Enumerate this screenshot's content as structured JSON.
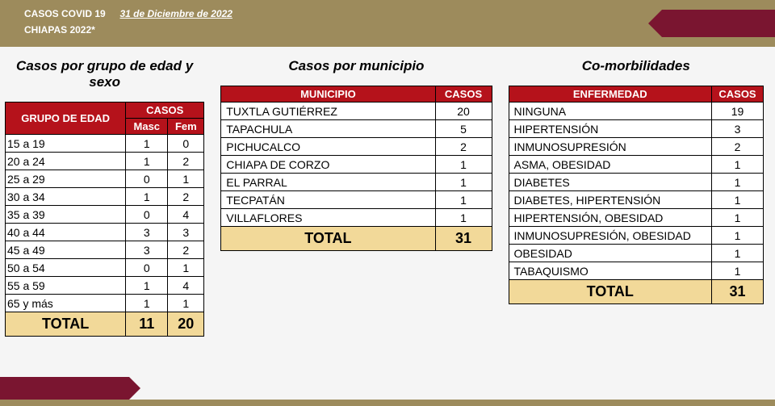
{
  "header": {
    "line1_prefix": "CASOS COVID 19",
    "date": "31 de Diciembre de 2022",
    "line2": "CHIAPAS 2022*"
  },
  "colors": {
    "gold": "#9d8b5c",
    "wine": "#7a1530",
    "header_red": "#b5121b",
    "total_bg": "#f2d999"
  },
  "age_sex": {
    "title": "Casos por grupo de edad y sexo",
    "col_group": "GRUPO DE EDAD",
    "col_cases": "CASOS",
    "sub_masc": "Masc",
    "sub_fem": "Fem",
    "rows": [
      {
        "g": "15 a 19",
        "m": 1,
        "f": 0
      },
      {
        "g": "20 a 24",
        "m": 1,
        "f": 2
      },
      {
        "g": "25 a 29",
        "m": 0,
        "f": 1
      },
      {
        "g": "30 a 34",
        "m": 1,
        "f": 2
      },
      {
        "g": "35 a 39",
        "m": 0,
        "f": 4
      },
      {
        "g": "40 a 44",
        "m": 3,
        "f": 3
      },
      {
        "g": "45 a 49",
        "m": 3,
        "f": 2
      },
      {
        "g": "50 a 54",
        "m": 0,
        "f": 1
      },
      {
        "g": "55 a 59",
        "m": 1,
        "f": 4
      },
      {
        "g": "65 y más",
        "m": 1,
        "f": 1
      }
    ],
    "total_label": "TOTAL",
    "total_m": 11,
    "total_f": 20
  },
  "muni": {
    "title": "Casos por municipio",
    "col_muni": "MUNICIPIO",
    "col_cases": "CASOS",
    "rows": [
      {
        "n": "TUXTLA GUTIÉRREZ",
        "c": 20
      },
      {
        "n": "TAPACHULA",
        "c": 5
      },
      {
        "n": "PICHUCALCO",
        "c": 2
      },
      {
        "n": "CHIAPA DE CORZO",
        "c": 1
      },
      {
        "n": "EL PARRAL",
        "c": 1
      },
      {
        "n": "TECPATÁN",
        "c": 1
      },
      {
        "n": "VILLAFLORES",
        "c": 1
      }
    ],
    "total_label": "TOTAL",
    "total": 31
  },
  "comorb": {
    "title": "Co-morbilidades",
    "col_enf": "ENFERMEDAD",
    "col_cases": "CASOS",
    "rows": [
      {
        "n": "NINGUNA",
        "c": 19
      },
      {
        "n": "HIPERTENSIÓN",
        "c": 3
      },
      {
        "n": "INMUNOSUPRESIÓN",
        "c": 2
      },
      {
        "n": "ASMA, OBESIDAD",
        "c": 1
      },
      {
        "n": "DIABETES",
        "c": 1
      },
      {
        "n": "DIABETES, HIPERTENSIÓN",
        "c": 1
      },
      {
        "n": "HIPERTENSIÓN, OBESIDAD",
        "c": 1
      },
      {
        "n": "INMUNOSUPRESIÓN, OBESIDAD",
        "c": 1
      },
      {
        "n": "OBESIDAD",
        "c": 1
      },
      {
        "n": "TABAQUISMO",
        "c": 1
      }
    ],
    "total_label": "TOTAL",
    "total": 31
  }
}
